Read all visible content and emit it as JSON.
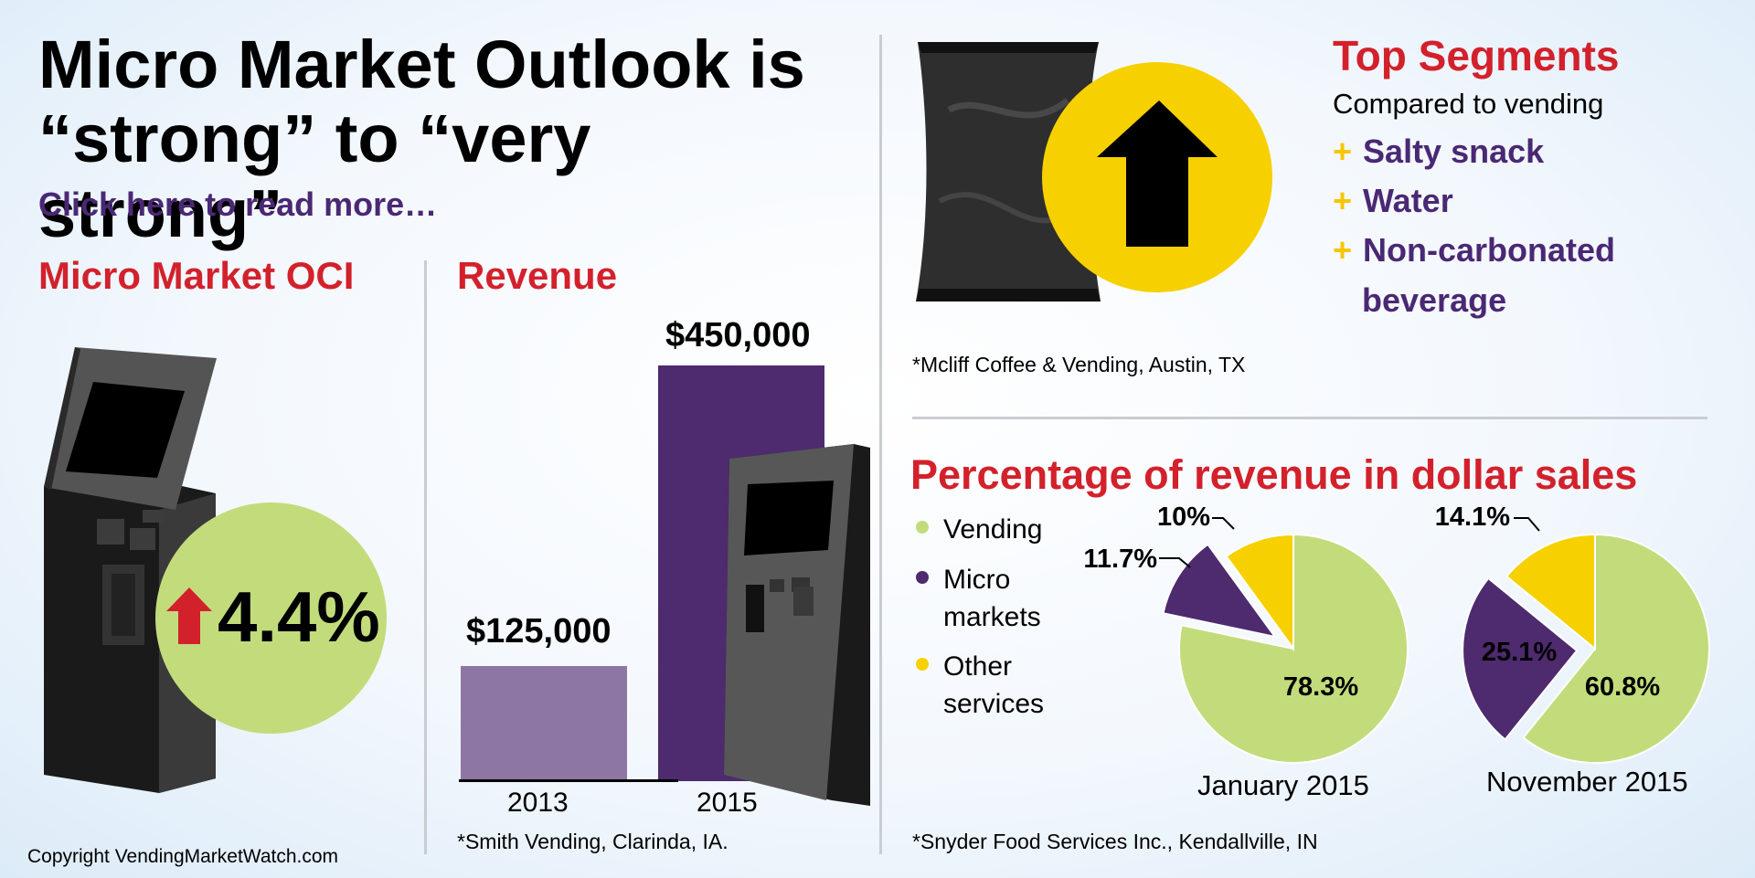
{
  "title_lines": [
    "Micro Market Outlook is",
    "“strong” to “very strong”"
  ],
  "read_more": "Click here to read more…",
  "oci": {
    "heading": "Micro Market OCI",
    "value": "4.4%",
    "change_direction": "up"
  },
  "revenue": {
    "heading": "Revenue",
    "note": "*Smith Vending, Clarinda, IA."
  },
  "segments": {
    "heading": "Top Segments",
    "subheading": "Compared to vending",
    "plus_symbol": "+",
    "items": [
      "Salty snack",
      "Water",
      "Non-carbonated",
      "beverage"
    ],
    "note": "*Mcliff Coffee & Vending, Austin, TX"
  },
  "percentage": {
    "heading": "Percentage of revenue in dollar sales",
    "legend": [
      {
        "lines": [
          "Vending"
        ],
        "color": "#c2dc7b"
      },
      {
        "lines": [
          "Micro",
          "markets"
        ],
        "color": "#4e2a6e"
      },
      {
        "lines": [
          "Other",
          "services"
        ],
        "color": "#f7d000"
      }
    ],
    "note": "*Snyder Food Services Inc., Kendallville, IN"
  },
  "copyright": "Copyright VendingMarketWatch.com",
  "colors": {
    "red": "#d3212c",
    "purple_dark": "#4e2a6e",
    "purple_light": "#8d76a4",
    "green": "#c2dc7b",
    "yellow": "#f7d000",
    "kiosk": "#2f2f2f"
  },
  "chart_data": [
    {
      "type": "bar",
      "title": "Revenue",
      "categories": [
        "2013",
        "2015"
      ],
      "values": [
        125000,
        450000
      ],
      "value_labels": [
        "$125,000",
        "$450,000"
      ],
      "colors": [
        "#8d76a4",
        "#4e2a6e"
      ],
      "ylim": [
        0,
        450000
      ],
      "xlabel": "",
      "ylabel": ""
    },
    {
      "type": "pie",
      "title": "January 2015",
      "labels": [
        "Vending",
        "Micro markets",
        "Other services"
      ],
      "values": [
        78.3,
        11.7,
        10
      ],
      "value_labels": [
        "78.3%",
        "11.7%",
        "10%"
      ],
      "colors": [
        "#c2dc7b",
        "#4e2a6e",
        "#f7d000"
      ]
    },
    {
      "type": "pie",
      "title": "November 2015",
      "labels": [
        "Vending",
        "Micro markets",
        "Other services"
      ],
      "values": [
        60.8,
        25.1,
        14.1
      ],
      "value_labels": [
        "60.8%",
        "25.1%",
        "14.1%"
      ],
      "colors": [
        "#c2dc7b",
        "#4e2a6e",
        "#f7d000"
      ]
    }
  ]
}
